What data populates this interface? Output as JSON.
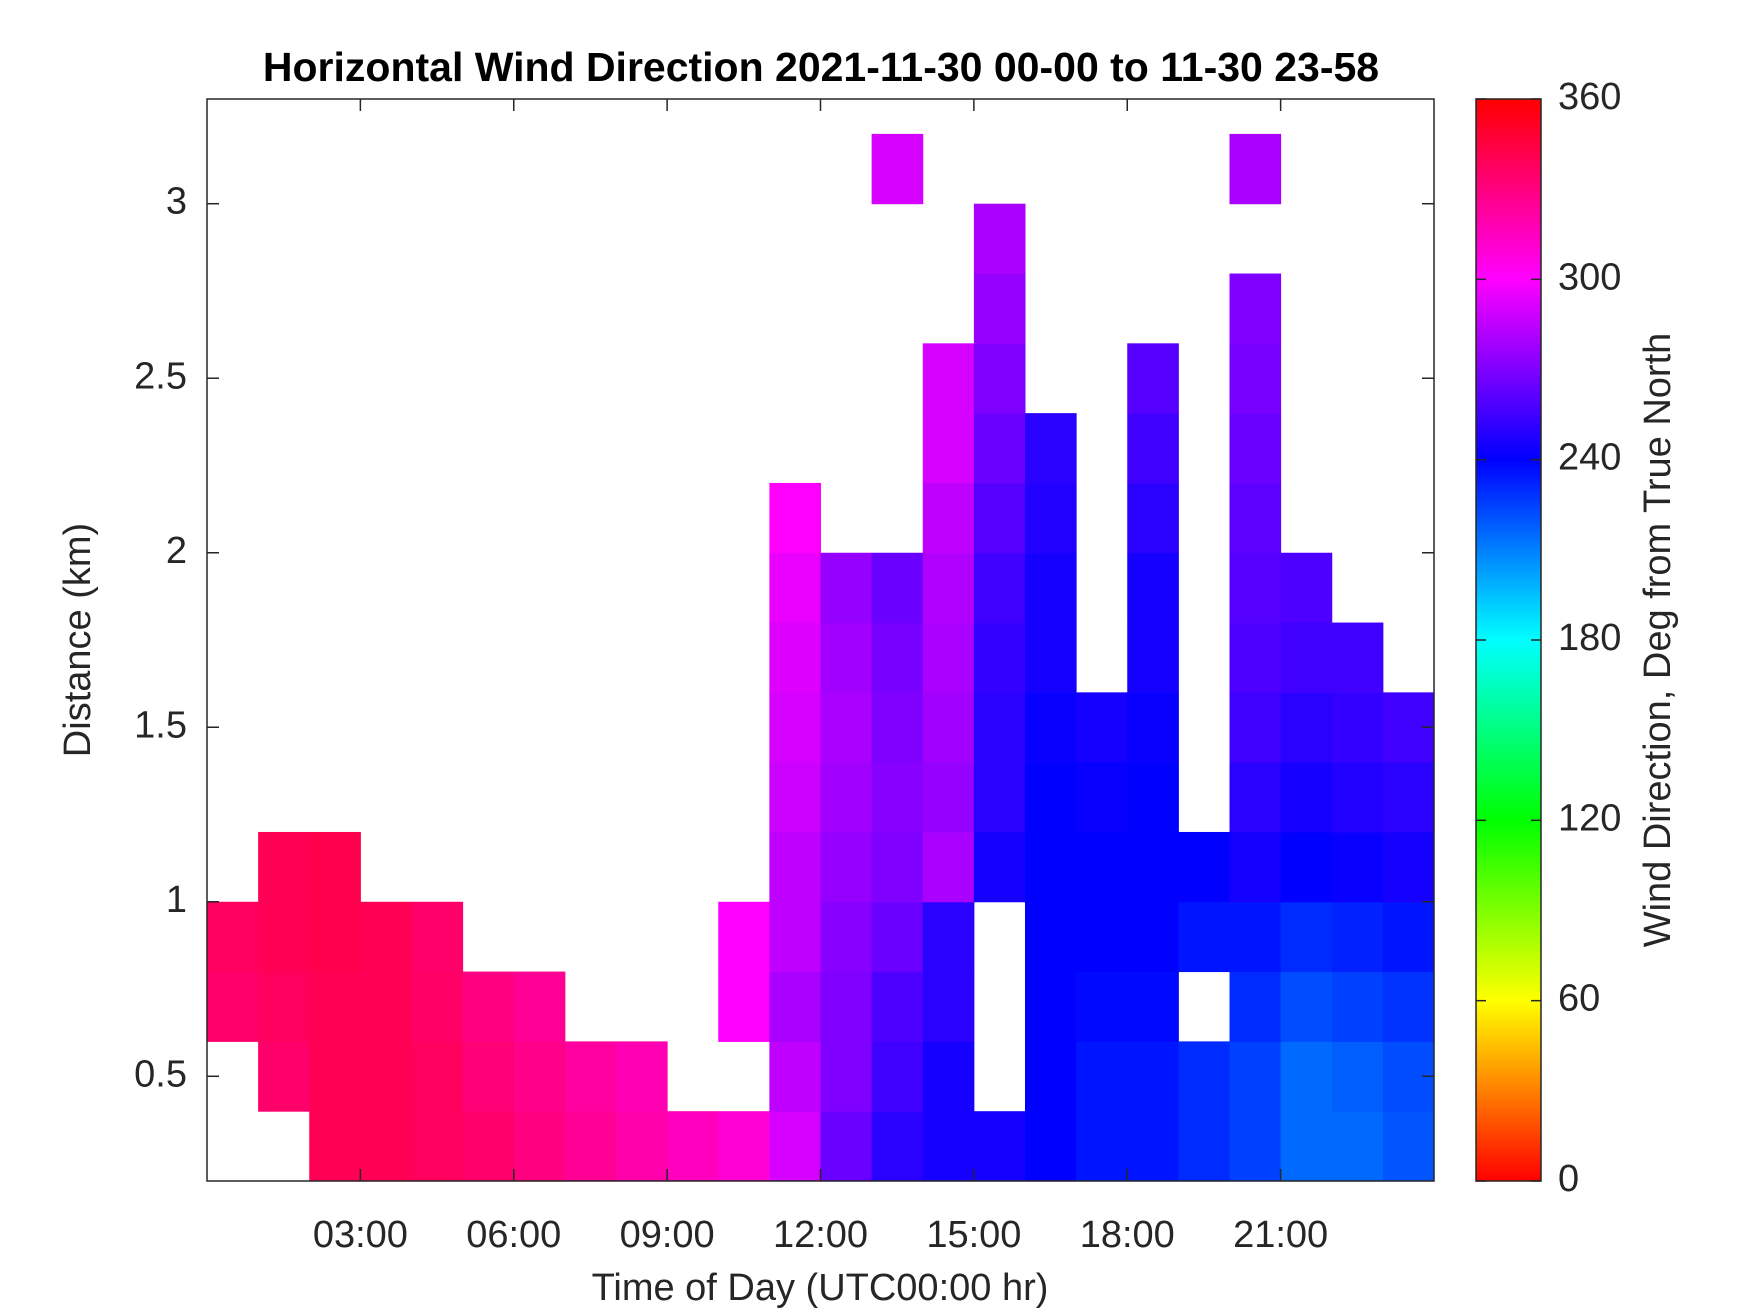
{
  "chart_data": {
    "type": "heatmap",
    "title": "Horizontal Wind Direction 2021-11-30 00-00 to 11-30 23-58",
    "x_label": "Time of Day (UTC00:00 hr)",
    "y_label": "Distance (km)",
    "colormap": "hsv",
    "colorbar": {
      "label": "Wind Direction, Deg from True North",
      "lim": [
        0,
        360
      ],
      "ticks": [
        0,
        60,
        120,
        180,
        240,
        300,
        360
      ]
    },
    "xlim": [
      0,
      24
    ],
    "ylim": [
      0.2,
      3.3
    ],
    "xticks": [
      {
        "value": 3,
        "label": "03:00"
      },
      {
        "value": 6,
        "label": "06:00"
      },
      {
        "value": 9,
        "label": "09:00"
      },
      {
        "value": 12,
        "label": "12:00"
      },
      {
        "value": 15,
        "label": "15:00"
      },
      {
        "value": 18,
        "label": "18:00"
      },
      {
        "value": 21,
        "label": "21:00"
      }
    ],
    "yticks": [
      0.5,
      1,
      1.5,
      2,
      2.5,
      3
    ],
    "x": [
      0.5,
      1.5,
      2.5,
      3.5,
      4.5,
      5.5,
      6.5,
      7.5,
      8.5,
      9.5,
      10.5,
      11.5,
      12.5,
      13.5,
      14.5,
      15.5,
      16.5,
      17.5,
      18.5,
      19.5,
      20.5,
      21.5,
      22.5,
      23.5
    ],
    "y": [
      0.3,
      0.5,
      0.7,
      0.9,
      1.1,
      1.3,
      1.5,
      1.7,
      1.9,
      2.1,
      2.3,
      2.5,
      2.7,
      2.9,
      3.1
    ],
    "z": [
      [
        null,
        null,
        340,
        340,
        338,
        335,
        330,
        325,
        320,
        315,
        310,
        290,
        265,
        250,
        245,
        245,
        240,
        235,
        235,
        230,
        225,
        215,
        215,
        220
      ],
      [
        null,
        335,
        340,
        340,
        338,
        332,
        328,
        322,
        318,
        null,
        null,
        285,
        270,
        255,
        245,
        null,
        240,
        235,
        235,
        230,
        225,
        215,
        218,
        222
      ],
      [
        335,
        338,
        340,
        340,
        336,
        330,
        325,
        null,
        null,
        null,
        300,
        280,
        270,
        258,
        250,
        null,
        240,
        238,
        238,
        null,
        230,
        222,
        225,
        228
      ],
      [
        338,
        340,
        342,
        340,
        335,
        null,
        null,
        null,
        null,
        null,
        300,
        285,
        272,
        265,
        250,
        null,
        240,
        240,
        240,
        235,
        235,
        230,
        232,
        235
      ],
      [
        null,
        340,
        342,
        null,
        null,
        null,
        null,
        null,
        null,
        null,
        null,
        285,
        275,
        270,
        280,
        245,
        240,
        240,
        240,
        240,
        245,
        240,
        242,
        245
      ],
      [
        null,
        null,
        null,
        null,
        null,
        null,
        null,
        null,
        null,
        null,
        null,
        288,
        278,
        272,
        275,
        250,
        240,
        242,
        240,
        null,
        250,
        245,
        248,
        250
      ],
      [
        null,
        null,
        null,
        null,
        null,
        null,
        null,
        null,
        null,
        null,
        null,
        290,
        280,
        270,
        278,
        250,
        242,
        245,
        242,
        null,
        255,
        250,
        252,
        255
      ],
      [
        null,
        null,
        null,
        null,
        null,
        null,
        null,
        null,
        null,
        null,
        null,
        292,
        278,
        268,
        280,
        252,
        245,
        null,
        245,
        null,
        258,
        255,
        255,
        null
      ],
      [
        null,
        null,
        null,
        null,
        null,
        null,
        null,
        null,
        null,
        null,
        null,
        295,
        275,
        265,
        282,
        255,
        245,
        null,
        245,
        null,
        260,
        258,
        null,
        null
      ],
      [
        null,
        null,
        null,
        null,
        null,
        null,
        null,
        null,
        null,
        null,
        null,
        300,
        null,
        null,
        285,
        260,
        248,
        null,
        250,
        null,
        262,
        null,
        null,
        null
      ],
      [
        null,
        null,
        null,
        null,
        null,
        null,
        null,
        null,
        null,
        null,
        null,
        null,
        null,
        null,
        290,
        265,
        250,
        null,
        255,
        null,
        265,
        null,
        null,
        null
      ],
      [
        null,
        null,
        null,
        null,
        null,
        null,
        null,
        null,
        null,
        null,
        null,
        null,
        null,
        null,
        290,
        270,
        null,
        null,
        260,
        null,
        268,
        null,
        null,
        null
      ],
      [
        null,
        null,
        null,
        null,
        null,
        null,
        null,
        null,
        null,
        null,
        null,
        null,
        null,
        null,
        null,
        275,
        null,
        null,
        null,
        null,
        270,
        null,
        null,
        null
      ],
      [
        null,
        null,
        null,
        null,
        null,
        null,
        null,
        null,
        null,
        null,
        null,
        null,
        null,
        null,
        null,
        280,
        null,
        null,
        null,
        null,
        null,
        null,
        null,
        null
      ],
      [
        null,
        null,
        null,
        null,
        null,
        null,
        null,
        null,
        null,
        null,
        null,
        null,
        null,
        290,
        null,
        null,
        null,
        null,
        null,
        null,
        280,
        null,
        null,
        null
      ]
    ]
  }
}
